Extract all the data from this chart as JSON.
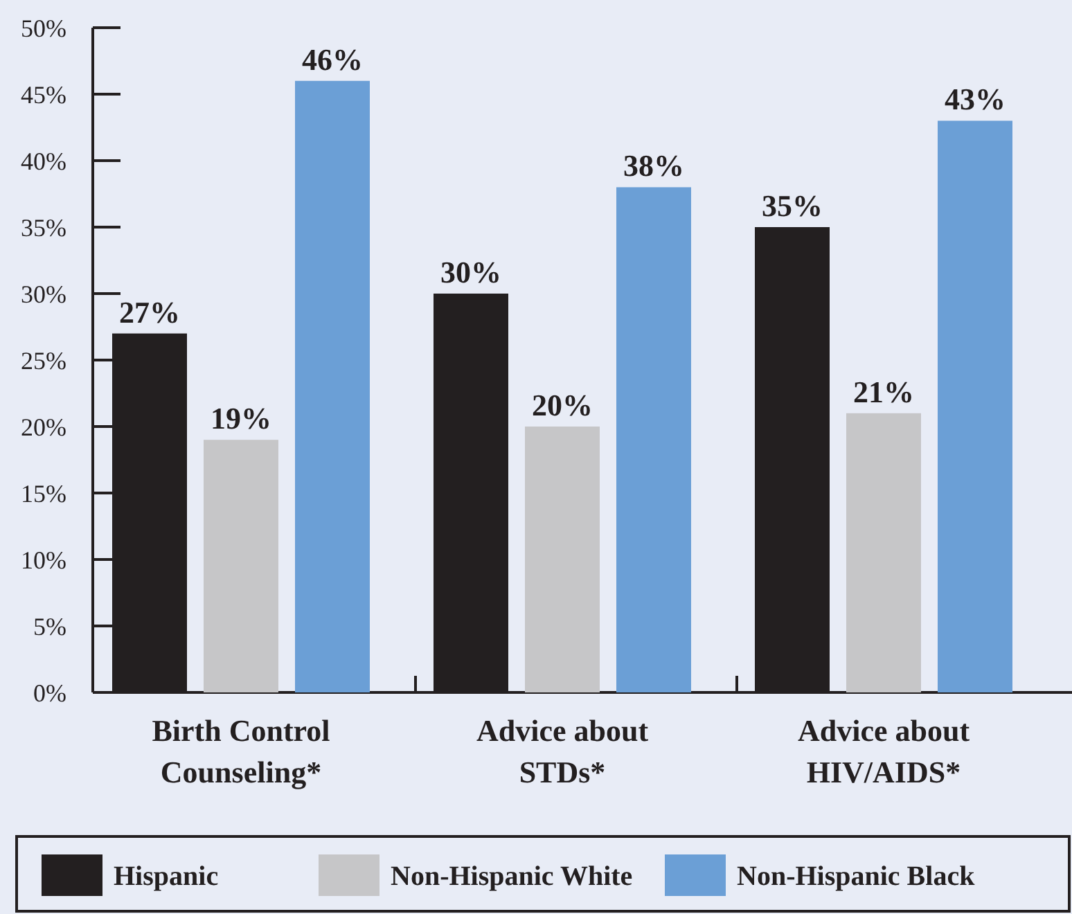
{
  "chart_data": {
    "type": "bar",
    "categories": [
      "Birth Control Counseling*",
      "Advice about STDs*",
      "Advice about HIV/AIDS*"
    ],
    "series": [
      {
        "name": "Hispanic",
        "color": "#231f20",
        "values": [
          27,
          30,
          35
        ],
        "value_labels": [
          "27%",
          "30%",
          "35%"
        ]
      },
      {
        "name": "Non-Hispanic White",
        "color": "#c6c6c8",
        "values": [
          19,
          20,
          21
        ],
        "value_labels": [
          "19%",
          "20%",
          "21%"
        ]
      },
      {
        "name": "Non-Hispanic Black",
        "color": "#6b9fd6",
        "values": [
          46,
          38,
          43
        ],
        "value_labels": [
          "46%",
          "38%",
          "43%"
        ]
      }
    ],
    "ylim": [
      0,
      50
    ],
    "yticks": [
      {
        "value": 0,
        "label": "0%"
      },
      {
        "value": 5,
        "label": "5%"
      },
      {
        "value": 10,
        "label": "10%"
      },
      {
        "value": 15,
        "label": "15%"
      },
      {
        "value": 20,
        "label": "20%"
      },
      {
        "value": 25,
        "label": "25%"
      },
      {
        "value": 30,
        "label": "30%"
      },
      {
        "value": 35,
        "label": "35%"
      },
      {
        "value": 40,
        "label": "40%"
      },
      {
        "value": 45,
        "label": "45%"
      },
      {
        "value": 50,
        "label": "50%"
      }
    ],
    "grid": false,
    "legend": "bottom"
  }
}
